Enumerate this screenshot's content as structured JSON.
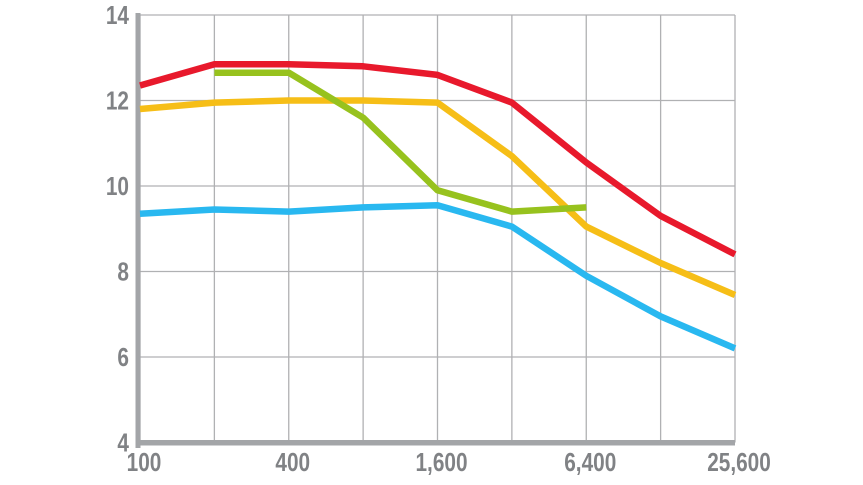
{
  "chart": {
    "title": "",
    "legend": "none"
  },
  "colors": {
    "background": "#ffffff",
    "gridline": "#b0b1b3",
    "axis_bar": "#a3a5a8",
    "tick_label": "#808285",
    "series_red": "#e8192c",
    "series_yellow": "#f6be17",
    "series_green": "#97c21e",
    "series_blue": "#29b8f0"
  },
  "chart_data": {
    "type": "line",
    "title": "",
    "xlabel": "",
    "ylabel": "",
    "x_scale": "log2",
    "categories": [
      100,
      200,
      400,
      800,
      1600,
      3200,
      6400,
      12800,
      25600
    ],
    "x_tick_labels": [
      {
        "index": 0,
        "label": "100"
      },
      {
        "index": 2,
        "label": "400"
      },
      {
        "index": 4,
        "label": "1,600"
      },
      {
        "index": 6,
        "label": "6,400"
      },
      {
        "index": 8,
        "label": "25,600"
      }
    ],
    "y_ticks": [
      4,
      6,
      8,
      10,
      12,
      14
    ],
    "y_tick_labels": [
      "4",
      "6",
      "8",
      "10",
      "12",
      "14"
    ],
    "ylim": [
      4,
      14
    ],
    "grid": true,
    "legend_position": "none",
    "series": [
      {
        "name": "yellow",
        "color": "#f6be17",
        "values": [
          11.8,
          11.95,
          12.0,
          12.0,
          11.95,
          10.7,
          9.05,
          8.2,
          7.45
        ]
      },
      {
        "name": "blue",
        "color": "#29b8f0",
        "values": [
          9.35,
          9.45,
          9.4,
          9.5,
          9.55,
          9.05,
          7.9,
          6.95,
          6.2
        ]
      },
      {
        "name": "green",
        "color": "#97c21e",
        "values": [
          null,
          12.65,
          12.65,
          11.6,
          9.9,
          9.4,
          9.5,
          null,
          null
        ]
      },
      {
        "name": "red",
        "color": "#e8192c",
        "values": [
          12.35,
          12.85,
          12.85,
          12.8,
          12.6,
          11.95,
          10.55,
          9.3,
          8.4
        ]
      }
    ]
  }
}
